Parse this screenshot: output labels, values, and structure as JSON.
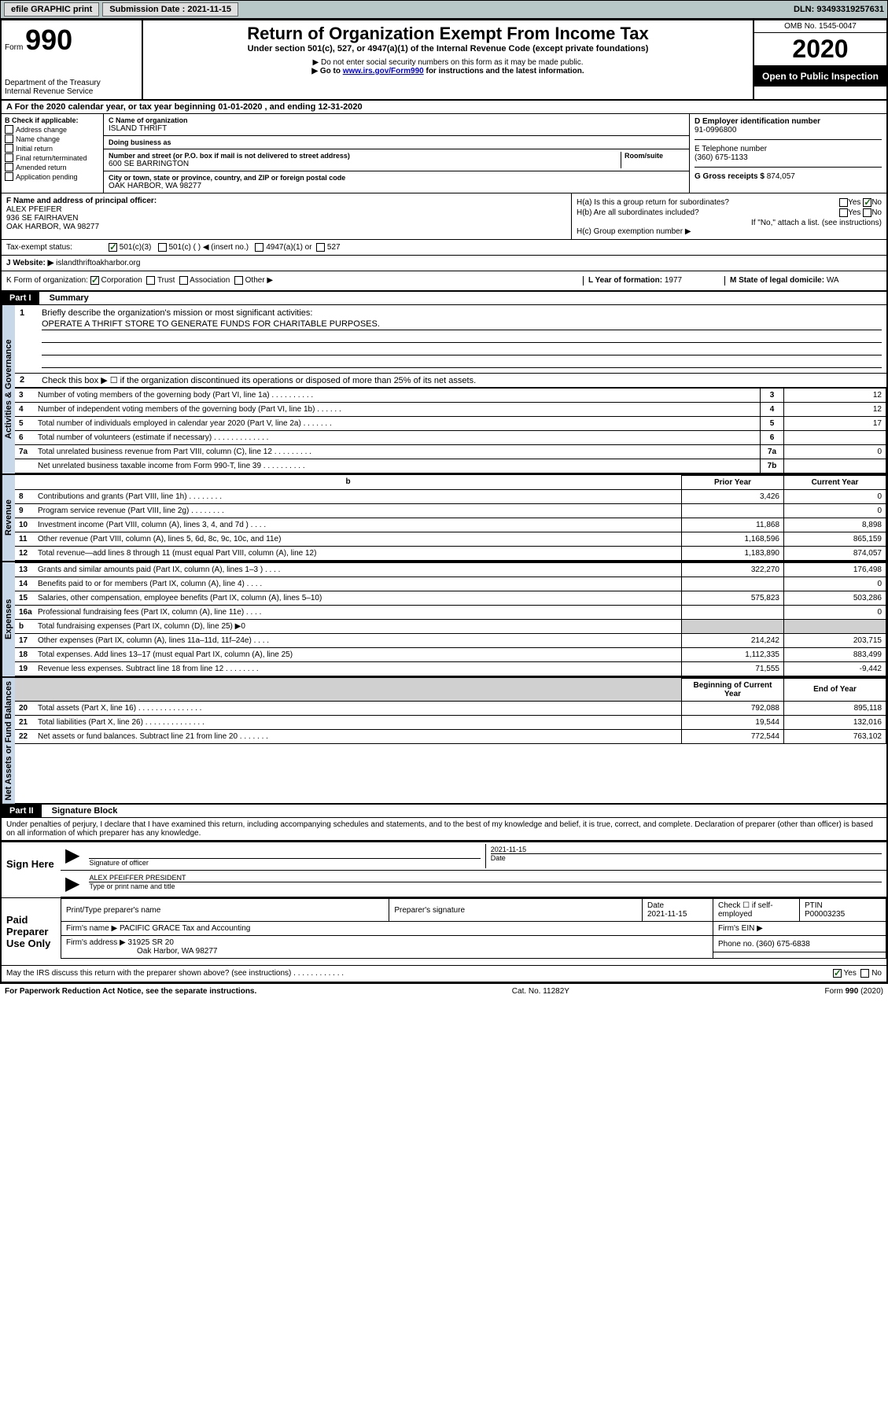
{
  "topbar": {
    "efile": "efile GRAPHIC print",
    "submission_label": "Submission Date :",
    "submission_date": "2021-11-15",
    "dln_label": "DLN:",
    "dln": "93493319257631"
  },
  "header": {
    "form_word": "Form",
    "form_num": "990",
    "dept": "Department of the Treasury\nInternal Revenue Service",
    "title": "Return of Organization Exempt From Income Tax",
    "subtitle": "Under section 501(c), 527, or 4947(a)(1) of the Internal Revenue Code (except private foundations)",
    "note1": "▶ Do not enter social security numbers on this form as it may be made public.",
    "note2_pre": "▶ Go to ",
    "note2_link": "www.irs.gov/Form990",
    "note2_post": " for instructions and the latest information.",
    "omb": "OMB No. 1545-0047",
    "year": "2020",
    "open_pub": "Open to Public Inspection"
  },
  "rowA": "A For the 2020 calendar year, or tax year beginning 01-01-2020    , and ending 12-31-2020",
  "boxB": {
    "title": "B Check if applicable:",
    "items": [
      "Address change",
      "Name change",
      "Initial return",
      "Final return/terminated",
      "Amended return",
      "Application pending"
    ]
  },
  "boxC": {
    "name_lbl": "C Name of organization",
    "name": "ISLAND THRIFT",
    "dba_lbl": "Doing business as",
    "dba": "",
    "street_lbl": "Number and street (or P.O. box if mail is not delivered to street address)",
    "room_lbl": "Room/suite",
    "street": "600 SE BARRINGTON",
    "city_lbl": "City or town, state or province, country, and ZIP or foreign postal code",
    "city": "OAK HARBOR, WA  98277"
  },
  "boxD": {
    "lbl": "D Employer identification number",
    "val": "91-0996800"
  },
  "boxE": {
    "lbl": "E Telephone number",
    "val": "(360) 675-1133"
  },
  "boxG": {
    "lbl": "G Gross receipts $",
    "val": "874,057"
  },
  "boxF": {
    "lbl": "F Name and address of principal officer:",
    "name": "ALEX PFEIFER",
    "addr1": "936 SE FAIRHAVEN",
    "addr2": "OAK HARBOR, WA  98277"
  },
  "boxH": {
    "a_lbl": "H(a)  Is this a group return for subordinates?",
    "b_lbl": "H(b)  Are all subordinates included?",
    "attach": "If \"No,\" attach a list. (see instructions)",
    "c_lbl": "H(c)  Group exemption number ▶",
    "yes": "Yes",
    "no": "No"
  },
  "boxI": {
    "lbl": "Tax-exempt status:",
    "opts": [
      "501(c)(3)",
      "501(c) (  ) ◀ (insert no.)",
      "4947(a)(1) or",
      "527"
    ]
  },
  "boxJ": {
    "lbl": "J   Website: ▶",
    "val": "islandthriftoakharbor.org"
  },
  "boxK": {
    "lbl": "K Form of organization:",
    "opts": [
      "Corporation",
      "Trust",
      "Association",
      "Other ▶"
    ]
  },
  "boxL": {
    "lbl": "L Year of formation:",
    "val": "1977"
  },
  "boxM": {
    "lbl": "M State of legal domicile:",
    "val": "WA"
  },
  "part1": {
    "hdr": "Part I",
    "title": "Summary",
    "mission_lbl": "Briefly describe the organization's mission or most significant activities:",
    "mission": "OPERATE A THRIFT STORE TO GENERATE FUNDS FOR CHARITABLE PURPOSES.",
    "line2": "Check this box ▶ ☐  if the organization discontinued its operations or disposed of more than 25% of its net assets."
  },
  "governance": {
    "label": "Activities & Governance",
    "rows": [
      {
        "n": "3",
        "t": "Number of voting members of the governing body (Part VI, line 1a)  .    .    .    .    .    .    .    .    .    .",
        "box": "3",
        "v": "12"
      },
      {
        "n": "4",
        "t": "Number of independent voting members of the governing body (Part VI, line 1b)  .    .    .    .    .    .",
        "box": "4",
        "v": "12"
      },
      {
        "n": "5",
        "t": "Total number of individuals employed in calendar year 2020 (Part V, line 2a)  .    .    .    .    .    .    .",
        "box": "5",
        "v": "17"
      },
      {
        "n": "6",
        "t": "Total number of volunteers (estimate if necessary)  .    .    .    .    .    .    .    .    .    .    .    .    .",
        "box": "6",
        "v": ""
      },
      {
        "n": "7a",
        "t": "Total unrelated business revenue from Part VIII, column (C), line 12  .    .    .    .    .    .    .    .    .",
        "box": "7a",
        "v": "0"
      },
      {
        "n": "",
        "t": "Net unrelated business taxable income from Form 990-T, line 39  .    .    .    .    .    .    .    .    .    .",
        "box": "7b",
        "v": ""
      }
    ]
  },
  "revenue": {
    "label": "Revenue",
    "hdr_prior": "Prior Year",
    "hdr_current": "Current Year",
    "rows": [
      {
        "n": "8",
        "t": "Contributions and grants (Part VIII, line 1h)  .    .    .    .    .    .    .    .",
        "p": "3,426",
        "c": "0"
      },
      {
        "n": "9",
        "t": "Program service revenue (Part VIII, line 2g)  .    .    .    .    .    .    .    .",
        "p": "",
        "c": "0"
      },
      {
        "n": "10",
        "t": "Investment income (Part VIII, column (A), lines 3, 4, and 7d )  .    .    .    .",
        "p": "11,868",
        "c": "8,898"
      },
      {
        "n": "11",
        "t": "Other revenue (Part VIII, column (A), lines 5, 6d, 8c, 9c, 10c, and 11e)",
        "p": "1,168,596",
        "c": "865,159"
      },
      {
        "n": "12",
        "t": "Total revenue—add lines 8 through 11 (must equal Part VIII, column (A), line 12)",
        "p": "1,183,890",
        "c": "874,057"
      }
    ]
  },
  "expenses": {
    "label": "Expenses",
    "rows": [
      {
        "n": "13",
        "t": "Grants and similar amounts paid (Part IX, column (A), lines 1–3 )  .    .    .    .",
        "p": "322,270",
        "c": "176,498"
      },
      {
        "n": "14",
        "t": "Benefits paid to or for members (Part IX, column (A), line 4)  .    .    .    .",
        "p": "",
        "c": "0"
      },
      {
        "n": "15",
        "t": "Salaries, other compensation, employee benefits (Part IX, column (A), lines 5–10)",
        "p": "575,823",
        "c": "503,286"
      },
      {
        "n": "16a",
        "t": "Professional fundraising fees (Part IX, column (A), line 11e)  .    .    .    .",
        "p": "",
        "c": "0"
      },
      {
        "n": "b",
        "t": "Total fundraising expenses (Part IX, column (D), line 25) ▶0",
        "p": "GRAY",
        "c": "GRAY"
      },
      {
        "n": "17",
        "t": "Other expenses (Part IX, column (A), lines 11a–11d, 11f–24e)  .    .    .    .",
        "p": "214,242",
        "c": "203,715"
      },
      {
        "n": "18",
        "t": "Total expenses. Add lines 13–17 (must equal Part IX, column (A), line 25)",
        "p": "1,112,335",
        "c": "883,499"
      },
      {
        "n": "19",
        "t": "Revenue less expenses. Subtract line 18 from line 12  .    .    .    .    .    .    .    .",
        "p": "71,555",
        "c": "-9,442"
      }
    ]
  },
  "netassets": {
    "label": "Net Assets or Fund Balances",
    "hdr_begin": "Beginning of Current Year",
    "hdr_end": "End of Year",
    "rows": [
      {
        "n": "20",
        "t": "Total assets (Part X, line 16)  .    .    .    .    .    .    .    .    .    .    .    .    .    .    .",
        "p": "792,088",
        "c": "895,118"
      },
      {
        "n": "21",
        "t": "Total liabilities (Part X, line 26)  .    .    .    .    .    .    .    .    .    .    .    .    .    .",
        "p": "19,544",
        "c": "132,016"
      },
      {
        "n": "22",
        "t": "Net assets or fund balances. Subtract line 21 from line 20  .    .    .    .    .    .    .",
        "p": "772,544",
        "c": "763,102"
      }
    ]
  },
  "part2": {
    "hdr": "Part II",
    "title": "Signature Block",
    "decl": "Under penalties of perjury, I declare that I have examined this return, including accompanying schedules and statements, and to the best of my knowledge and belief, it is true, correct, and complete. Declaration of preparer (other than officer) is based on all information of which preparer has any knowledge."
  },
  "sign": {
    "label": "Sign Here",
    "sig_lbl": "Signature of officer",
    "date_lbl": "Date",
    "date": "2021-11-15",
    "name": "ALEX PFEIFFER  PRESIDENT",
    "name_lbl": "Type or print name and title"
  },
  "prep": {
    "label": "Paid Preparer Use Only",
    "cols": [
      "Print/Type preparer's name",
      "Preparer's signature",
      "Date",
      "Check ☐  if self-employed",
      "PTIN"
    ],
    "date": "2021-11-15",
    "ptin": "P00003235",
    "firm_name_lbl": "Firm's name    ▶",
    "firm_name": "PACIFIC GRACE Tax and Accounting",
    "firm_ein_lbl": "Firm's EIN ▶",
    "firm_addr_lbl": "Firm's address ▶",
    "firm_addr1": "31925 SR 20",
    "firm_addr2": "Oak Harbor, WA  98277",
    "phone_lbl": "Phone no.",
    "phone": "(360) 675-6838"
  },
  "discuss": {
    "q": "May the IRS discuss this return with the preparer shown above? (see instructions)  .    .    .    .    .    .    .    .    .    .    .    .",
    "yes": "Yes",
    "no": "No"
  },
  "footer": {
    "left": "For Paperwork Reduction Act Notice, see the separate instructions.",
    "mid": "Cat. No. 11282Y",
    "right": "Form 990 (2020)"
  }
}
